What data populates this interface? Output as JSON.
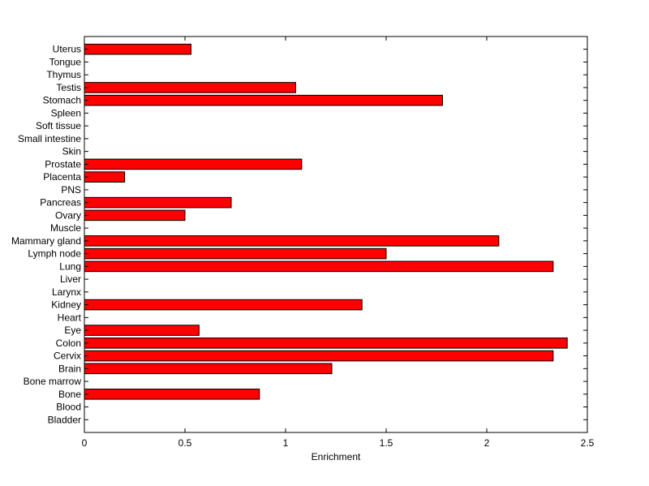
{
  "chart_data": {
    "type": "bar",
    "orientation": "horizontal",
    "title": "",
    "xlabel": "Enrichment",
    "ylabel": "",
    "xlim": [
      0,
      2.5
    ],
    "x_ticks": [
      0,
      0.5,
      1,
      1.5,
      2,
      2.5
    ],
    "x_tick_labels": [
      "0",
      "0.5",
      "1",
      "1.5",
      "2",
      "2.5"
    ],
    "grid": false,
    "bar_color": "#ff0000",
    "categories": [
      "Bladder",
      "Blood",
      "Bone",
      "Bone marrow",
      "Brain",
      "Cervix",
      "Colon",
      "Eye",
      "Heart",
      "Kidney",
      "Larynx",
      "Liver",
      "Lung",
      "Lymph node",
      "Mammary gland",
      "Muscle",
      "Ovary",
      "Pancreas",
      "PNS",
      "Placenta",
      "Prostate",
      "Skin",
      "Small intestine",
      "Soft tissue",
      "Spleen",
      "Stomach",
      "Testis",
      "Thymus",
      "Tongue",
      "Uterus"
    ],
    "values": [
      0,
      0,
      0.87,
      0,
      1.23,
      2.33,
      2.4,
      0.57,
      0,
      1.38,
      0,
      0,
      2.33,
      1.5,
      2.06,
      0,
      0.5,
      0.73,
      0,
      0.2,
      1.08,
      0,
      0,
      0,
      0,
      1.78,
      1.05,
      0,
      0,
      0.53
    ]
  }
}
